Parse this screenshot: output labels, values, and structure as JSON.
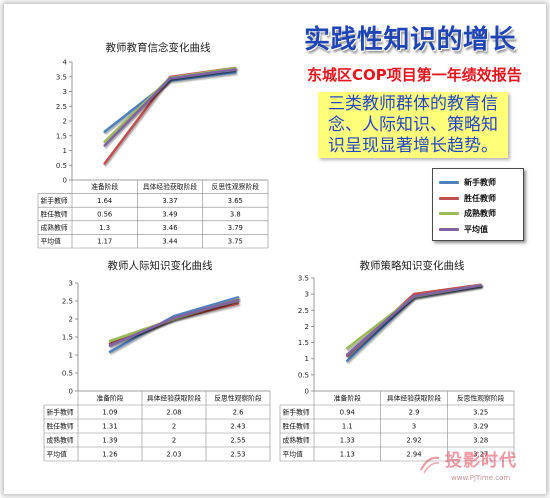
{
  "header": {
    "title": "实践性知识的增长",
    "subtitle": "东城区COP项目第一年绩效报告",
    "summary_lines": [
      "三类教师群体的教育信",
      "念、人际知识、策略知",
      "识呈现显著增长趋势。"
    ]
  },
  "legend": {
    "placement": "right",
    "items": [
      {
        "label": "新手教师",
        "color": "#4F81BD"
      },
      {
        "label": "胜任教师",
        "color": "#C0504D"
      },
      {
        "label": "成熟教师",
        "color": "#9BBB59"
      },
      {
        "label": "平均值",
        "color": "#8064A2"
      }
    ]
  },
  "chart_data": [
    {
      "type": "line",
      "title": "教师教育信念变化曲线",
      "categories": [
        "准备阶段",
        "具体经验获取阶段",
        "反思性观察阶段"
      ],
      "series": [
        {
          "name": "新手教师",
          "color": "#4F81BD",
          "values": [
            1.64,
            3.37,
            3.65
          ]
        },
        {
          "name": "胜任教师",
          "color": "#C0504D",
          "values": [
            0.56,
            3.49,
            3.8
          ]
        },
        {
          "name": "成熟教师",
          "color": "#9BBB59",
          "values": [
            1.3,
            3.46,
            3.79
          ]
        },
        {
          "name": "平均值",
          "color": "#8064A2",
          "values": [
            1.17,
            3.44,
            3.75
          ]
        }
      ],
      "ylim": [
        0,
        4
      ],
      "yticks": [
        0,
        0.5,
        1,
        1.5,
        2,
        2.5,
        3,
        3.5,
        4
      ],
      "grid": false,
      "data_table": true
    },
    {
      "type": "line",
      "title": "教师人际知识变化曲线",
      "categories": [
        "准备阶段",
        "具体经验获取阶段",
        "反思性观察阶段"
      ],
      "series": [
        {
          "name": "新手教师",
          "color": "#4F81BD",
          "values": [
            1.09,
            2.08,
            2.6
          ]
        },
        {
          "name": "胜任教师",
          "color": "#C0504D",
          "values": [
            1.31,
            2,
            2.43
          ]
        },
        {
          "name": "成熟教师",
          "color": "#9BBB59",
          "values": [
            1.39,
            2,
            2.55
          ]
        },
        {
          "name": "平均值",
          "color": "#8064A2",
          "values": [
            1.26,
            2.03,
            2.53
          ]
        }
      ],
      "ylim": [
        0,
        3
      ],
      "yticks": [
        0,
        0.5,
        1,
        1.5,
        2,
        2.5,
        3
      ],
      "grid": false,
      "data_table": true
    },
    {
      "type": "line",
      "title": "教师策略知识变化曲线",
      "categories": [
        "准备阶段",
        "具体经验获取阶段",
        "反思性观察阶段"
      ],
      "series": [
        {
          "name": "新手教师",
          "color": "#4F81BD",
          "values": [
            0.94,
            2.9,
            3.25
          ]
        },
        {
          "name": "胜任教师",
          "color": "#C0504D",
          "values": [
            1.1,
            3,
            3.29
          ]
        },
        {
          "name": "成熟教师",
          "color": "#9BBB59",
          "values": [
            1.33,
            2.92,
            3.28
          ]
        },
        {
          "name": "平均值",
          "color": "#8064A2",
          "values": [
            1.13,
            2.94,
            3.27
          ]
        }
      ],
      "ylim": [
        0,
        3.5
      ],
      "yticks": [
        0,
        0.5,
        1,
        1.5,
        2,
        2.5,
        3,
        3.5
      ],
      "grid": false,
      "data_table": true
    }
  ],
  "watermark": {
    "brand": "投影时代",
    "url": "www.PjTime.com",
    "logo_icon": "pjtime-logo-icon"
  }
}
